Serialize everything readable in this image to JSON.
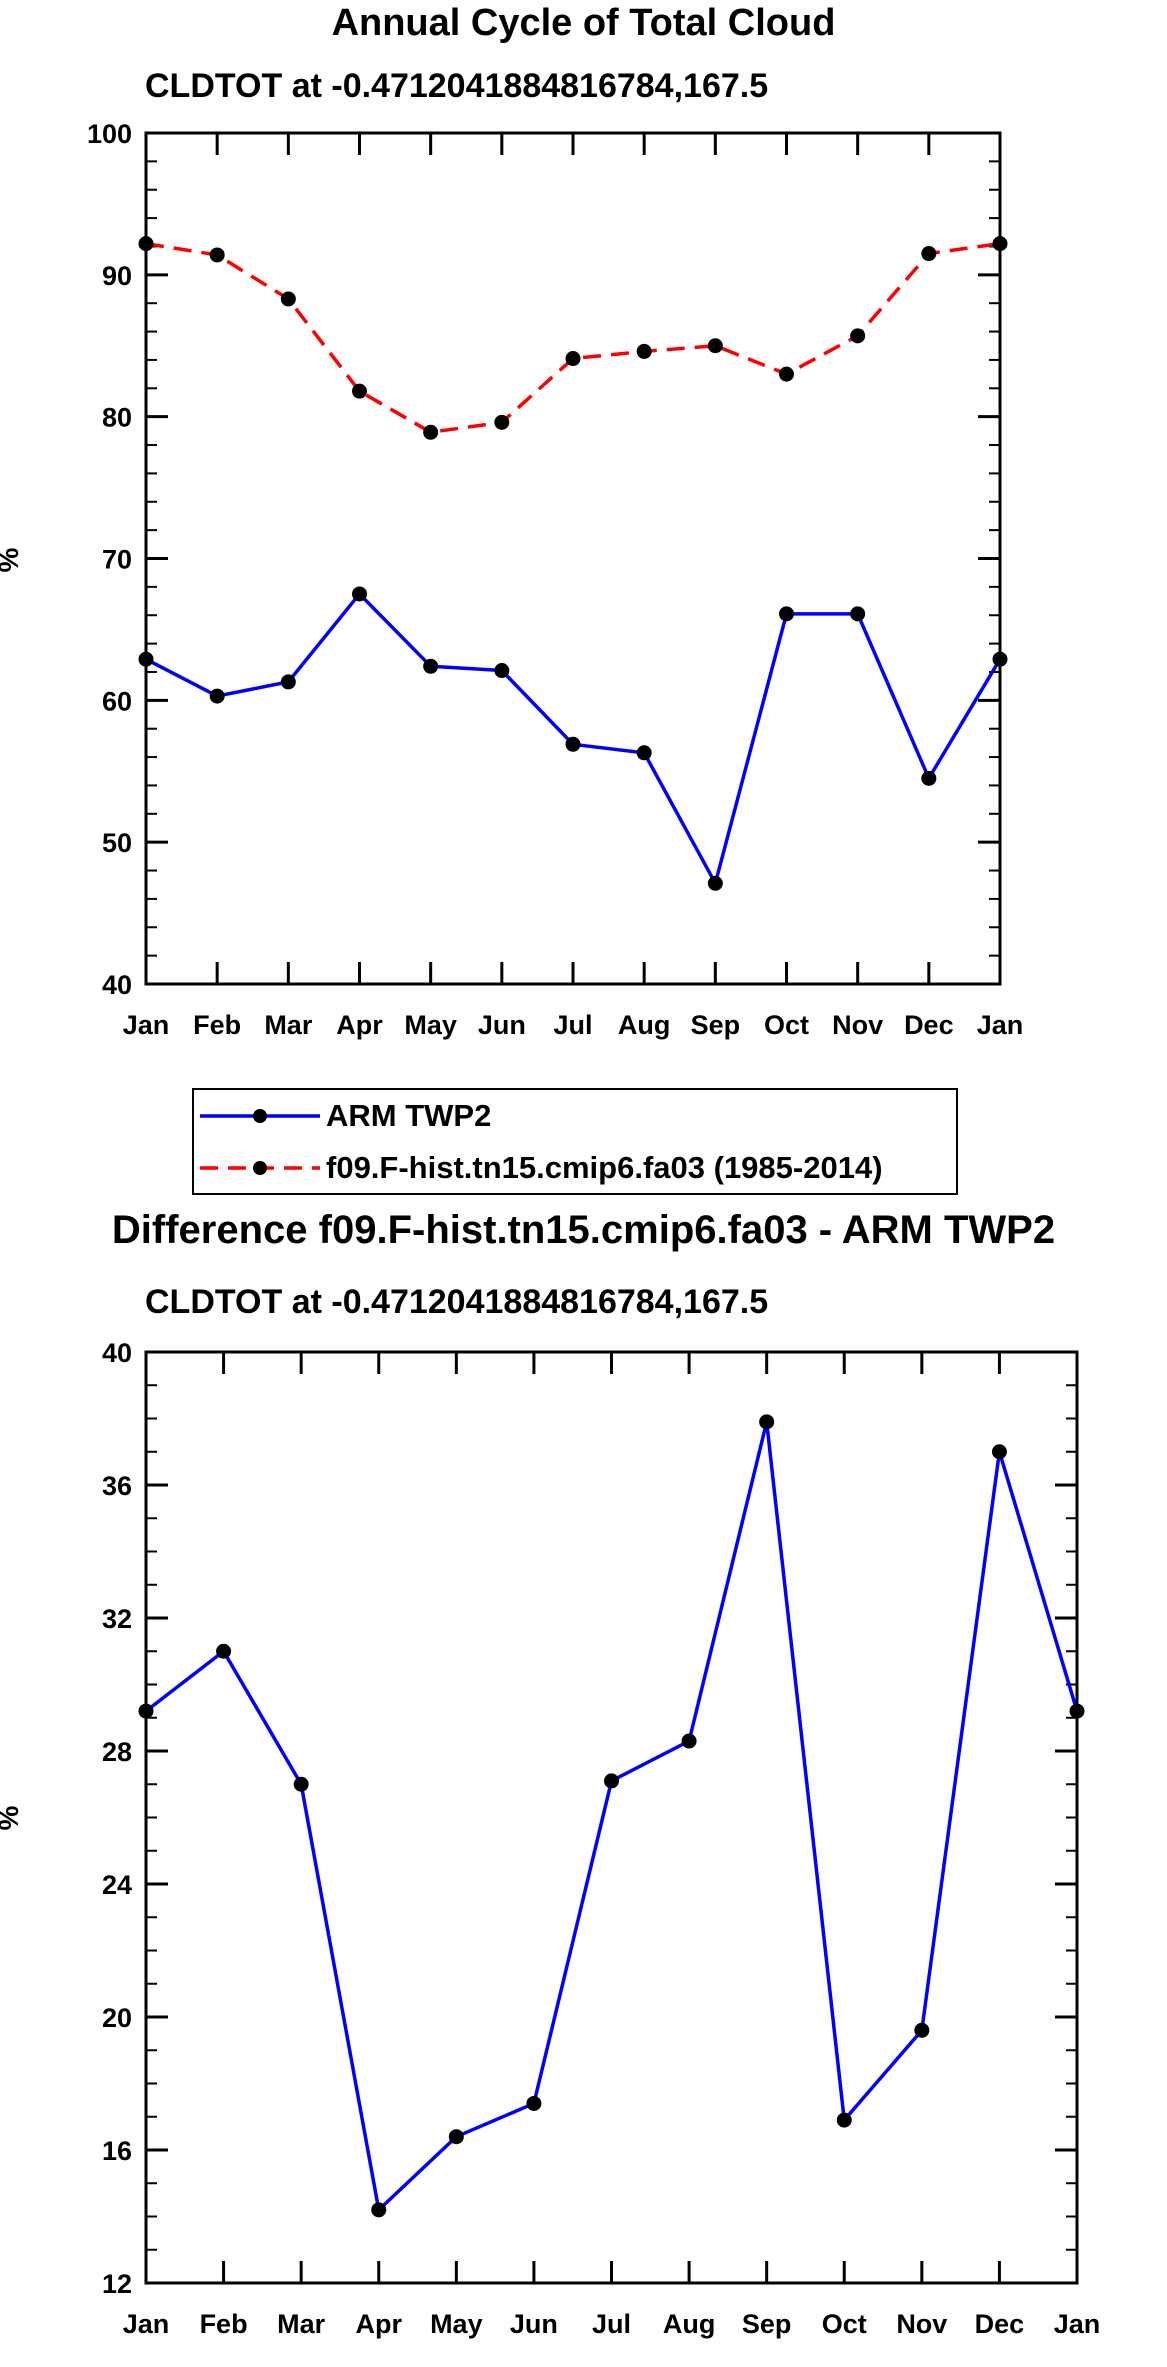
{
  "chart_data": [
    {
      "type": "line",
      "title": "Annual Cycle of Total Cloud",
      "subtitle": "CLDTOT at -0.4712041884816784,167.5",
      "xlabel": "",
      "ylabel": "%",
      "ylim": [
        40,
        100
      ],
      "yticks": [
        40,
        50,
        60,
        70,
        80,
        90,
        100
      ],
      "categories": [
        "Jan",
        "Feb",
        "Mar",
        "Apr",
        "May",
        "Jun",
        "Jul",
        "Aug",
        "Sep",
        "Oct",
        "Nov",
        "Dec",
        "Jan"
      ],
      "series": [
        {
          "name": "ARM TWP2",
          "color": "#0000ff",
          "dash": "solid",
          "values": [
            62.9,
            60.3,
            61.3,
            67.5,
            62.4,
            62.1,
            56.9,
            56.3,
            47.1,
            66.1,
            66.1,
            54.5,
            62.9
          ]
        },
        {
          "name": "f09.F-hist.tn15.cmip6.fa03 (1985-2014)",
          "color": "#ff0000",
          "dash": "dashed",
          "values": [
            92.2,
            91.4,
            88.3,
            81.8,
            78.9,
            79.6,
            84.1,
            84.6,
            85.0,
            83.0,
            85.7,
            91.5,
            92.2
          ]
        }
      ],
      "legend_position": "bottom"
    },
    {
      "type": "line",
      "title": "Difference f09.F-hist.tn15.cmip6.fa03 - ARM TWP2",
      "subtitle": "CLDTOT at -0.4712041884816784,167.5",
      "xlabel": "",
      "ylabel": "%",
      "ylim": [
        12,
        40
      ],
      "yticks": [
        12,
        16,
        20,
        24,
        28,
        32,
        36,
        40
      ],
      "categories": [
        "Jan",
        "Feb",
        "Mar",
        "Apr",
        "May",
        "Jun",
        "Jul",
        "Aug",
        "Sep",
        "Oct",
        "Nov",
        "Dec",
        "Jan"
      ],
      "series": [
        {
          "name": "Difference",
          "color": "#0000ff",
          "dash": "solid",
          "values": [
            29.2,
            31.0,
            27.0,
            14.2,
            16.4,
            17.4,
            27.1,
            28.3,
            37.9,
            16.9,
            19.6,
            37.0,
            29.2
          ]
        }
      ]
    }
  ]
}
